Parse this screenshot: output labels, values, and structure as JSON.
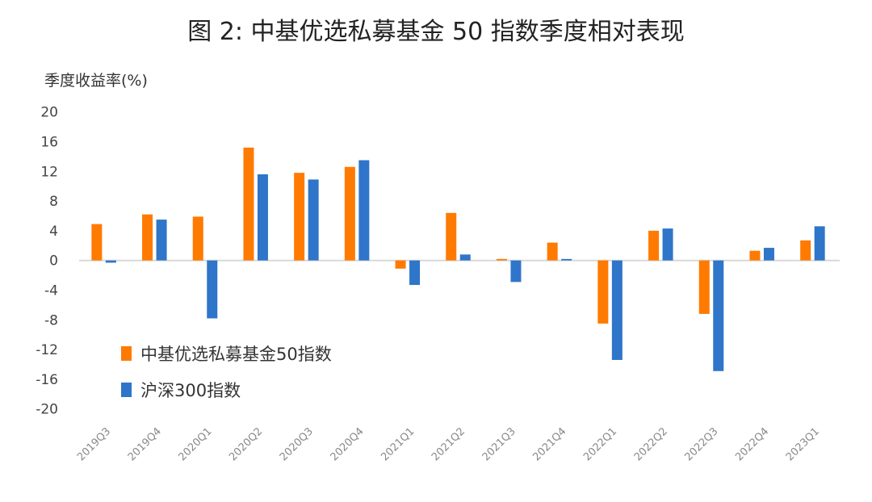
{
  "title": "图 2:    中基优选私募基金 50 指数季度相对表现",
  "chart_data": {
    "type": "bar",
    "ylabel": "季度收益率(%)",
    "ylim": [
      -20,
      20
    ],
    "yticks": [
      20,
      16,
      12,
      8,
      4,
      0,
      -4,
      -8,
      -12,
      -16,
      -20
    ],
    "grid": false,
    "legend_position": "bottom-left",
    "categories": [
      "2019Q3",
      "2019Q4",
      "2020Q1",
      "2020Q2",
      "2020Q3",
      "2020Q4",
      "2021Q1",
      "2021Q2",
      "2021Q3",
      "2021Q4",
      "2022Q1",
      "2022Q2",
      "2022Q3",
      "2022Q4",
      "2023Q1"
    ],
    "series": [
      {
        "name": "中基优选私募基金50指数",
        "color": "#FF7A00",
        "values": [
          4.9,
          6.2,
          5.9,
          15.2,
          11.8,
          12.6,
          -1.1,
          6.4,
          0.2,
          2.4,
          -8.5,
          4.0,
          -7.2,
          1.3,
          2.7
        ]
      },
      {
        "name": "沪深300指数",
        "color": "#2F75C9",
        "values": [
          -0.3,
          5.5,
          -7.8,
          11.6,
          10.9,
          13.5,
          -3.3,
          0.8,
          -2.9,
          0.2,
          -13.4,
          4.3,
          -14.9,
          1.7,
          4.6
        ]
      }
    ]
  }
}
